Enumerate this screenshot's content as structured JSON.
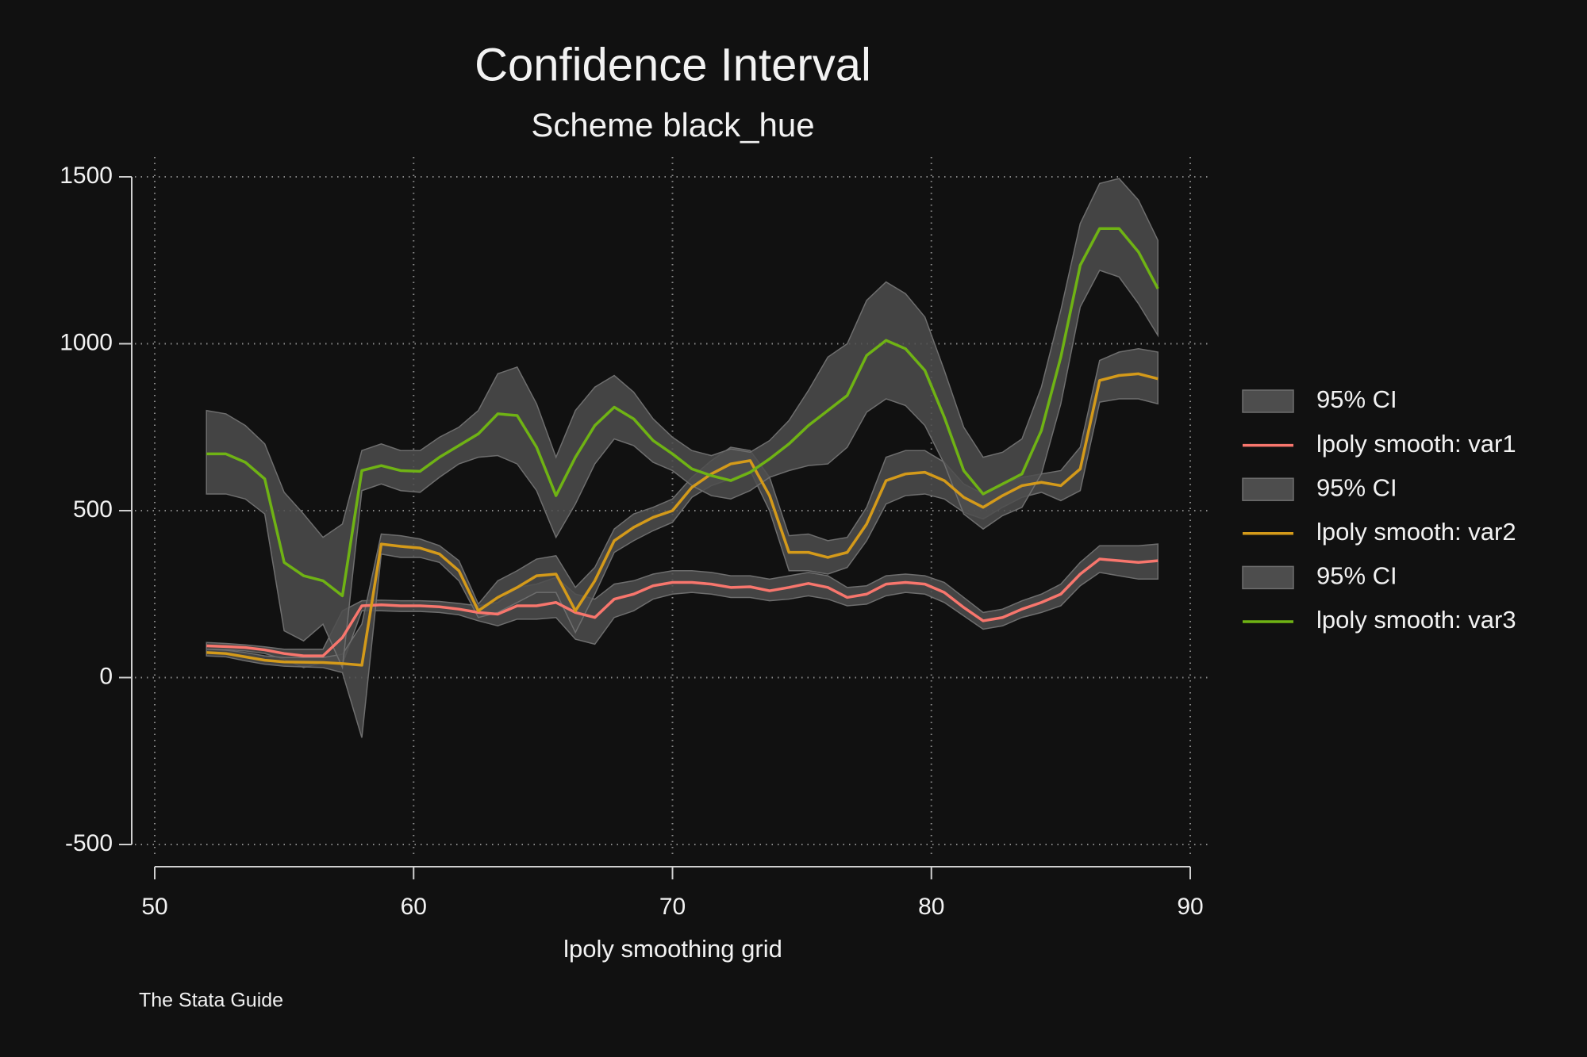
{
  "chart_data": {
    "type": "line",
    "title": "Confidence Interval",
    "subtitle": "Scheme black_hue",
    "x_label": "lpoly smoothing grid",
    "note": "The Stata Guide",
    "x": [
      52,
      52.75,
      53.5,
      54.25,
      55,
      55.75,
      56.5,
      57.25,
      58,
      58.75,
      59.5,
      60.25,
      61,
      61.75,
      62.5,
      63.25,
      64,
      64.75,
      65.5,
      66.25,
      67,
      67.75,
      68.5,
      69.25,
      70,
      70.75,
      71.5,
      72.25,
      73,
      73.75,
      74.5,
      75.25,
      76,
      76.75,
      77.5,
      78.25,
      79,
      79.75,
      80.5,
      81.25,
      82,
      82.75,
      83.5,
      84.25,
      85,
      85.75,
      86.5,
      87.25,
      88,
      88.75
    ],
    "series": [
      {
        "name": "lpoly smooth: var1",
        "color": "#f8766d",
        "values": [
          95,
          93,
          90,
          83,
          72,
          65,
          65,
          120,
          215,
          218,
          215,
          215,
          212,
          205,
          195,
          190,
          215,
          215,
          225,
          195,
          180,
          235,
          250,
          275,
          285,
          285,
          280,
          270,
          272,
          260,
          270,
          282,
          270,
          240,
          250,
          280,
          285,
          280,
          255,
          210,
          170,
          180,
          205,
          225,
          250,
          310,
          355,
          350,
          345,
          350
        ],
        "ci": {
          "name": "95% CI",
          "color": "#4d4d4d",
          "lower": [
            85,
            84,
            80,
            72,
            55,
            30,
            45,
            40,
            200,
            200,
            198,
            198,
            195,
            188,
            170,
            155,
            175,
            175,
            180,
            115,
            100,
            180,
            200,
            235,
            250,
            255,
            250,
            240,
            240,
            230,
            235,
            245,
            235,
            215,
            220,
            245,
            255,
            250,
            225,
            185,
            145,
            155,
            180,
            195,
            215,
            275,
            315,
            305,
            295,
            295
          ],
          "upper": [
            105,
            102,
            98,
            92,
            85,
            85,
            85,
            200,
            230,
            232,
            230,
            230,
            228,
            222,
            215,
            225,
            270,
            280,
            300,
            250,
            235,
            280,
            290,
            310,
            320,
            320,
            315,
            305,
            305,
            295,
            305,
            315,
            305,
            270,
            275,
            305,
            310,
            305,
            285,
            240,
            195,
            205,
            230,
            250,
            280,
            345,
            395,
            395,
            395,
            400
          ]
        }
      },
      {
        "name": "lpoly smooth: var2",
        "color": "#d49a1a",
        "values": [
          75,
          72,
          62,
          52,
          47,
          46,
          45,
          42,
          37,
          400,
          393,
          388,
          370,
          320,
          200,
          240,
          270,
          305,
          310,
          200,
          290,
          410,
          450,
          480,
          500,
          570,
          610,
          640,
          650,
          545,
          375,
          375,
          360,
          375,
          460,
          590,
          610,
          615,
          590,
          540,
          510,
          545,
          575,
          585,
          575,
          625,
          890,
          905,
          910,
          895
        ],
        "ci": {
          "name": "95% CI",
          "color": "#4d4d4d",
          "lower": [
            65,
            62,
            50,
            40,
            34,
            32,
            30,
            15,
            -180,
            370,
            360,
            360,
            345,
            290,
            180,
            195,
            225,
            255,
            255,
            135,
            250,
            375,
            410,
            440,
            465,
            540,
            575,
            595,
            620,
            500,
            320,
            320,
            310,
            330,
            410,
            520,
            545,
            550,
            535,
            495,
            475,
            510,
            540,
            555,
            530,
            560,
            825,
            835,
            835,
            820
          ],
          "upper": [
            85,
            82,
            75,
            65,
            60,
            60,
            60,
            70,
            160,
            430,
            425,
            415,
            395,
            350,
            220,
            290,
            320,
            355,
            365,
            270,
            330,
            445,
            490,
            510,
            535,
            600,
            650,
            690,
            680,
            600,
            425,
            430,
            410,
            420,
            510,
            660,
            680,
            680,
            645,
            580,
            550,
            580,
            600,
            610,
            620,
            690,
            950,
            975,
            985,
            975
          ]
        }
      },
      {
        "name": "lpoly smooth: var3",
        "color": "#6fb314",
        "values": [
          670,
          670,
          645,
          595,
          345,
          305,
          290,
          245,
          620,
          635,
          620,
          618,
          660,
          695,
          730,
          790,
          785,
          690,
          545,
          660,
          755,
          810,
          775,
          710,
          670,
          625,
          605,
          590,
          615,
          655,
          700,
          755,
          800,
          845,
          965,
          1010,
          985,
          920,
          780,
          620,
          550,
          580,
          610,
          740,
          960,
          1235,
          1345,
          1345,
          1275,
          1165
        ],
        "ci": {
          "name": "95% CI",
          "color": "#4d4d4d",
          "lower": [
            550,
            550,
            535,
            490,
            140,
            110,
            160,
            30,
            560,
            580,
            560,
            555,
            600,
            640,
            660,
            665,
            640,
            560,
            420,
            520,
            640,
            715,
            695,
            645,
            620,
            575,
            545,
            535,
            560,
            600,
            620,
            635,
            640,
            690,
            795,
            835,
            815,
            755,
            640,
            490,
            445,
            485,
            510,
            610,
            820,
            1110,
            1220,
            1200,
            1120,
            1025
          ],
          "upper": [
            800,
            790,
            755,
            700,
            555,
            490,
            420,
            460,
            680,
            700,
            680,
            680,
            720,
            750,
            800,
            910,
            930,
            820,
            660,
            800,
            870,
            905,
            855,
            775,
            720,
            680,
            665,
            685,
            675,
            710,
            770,
            860,
            960,
            1000,
            1130,
            1185,
            1150,
            1080,
            920,
            750,
            660,
            675,
            715,
            870,
            1100,
            1360,
            1480,
            1495,
            1430,
            1310
          ]
        }
      }
    ],
    "xlim": [
      50,
      90
    ],
    "xticks": [
      50,
      60,
      70,
      80,
      90
    ],
    "ylim": [
      -500,
      1500
    ],
    "yticks": [
      -500,
      0,
      500,
      1000,
      1500
    ],
    "grid": true,
    "legend": "right"
  }
}
